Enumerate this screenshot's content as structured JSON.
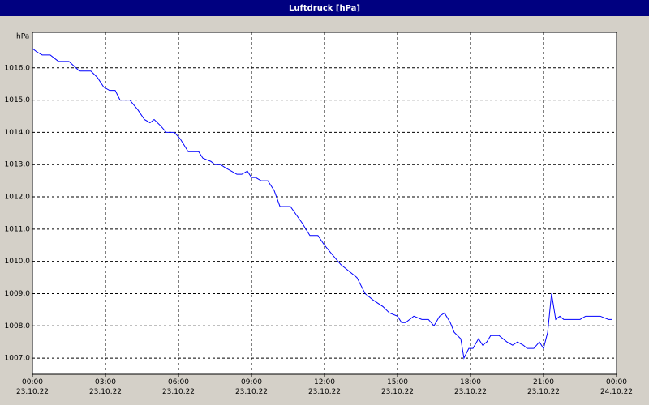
{
  "chart_data": {
    "type": "line",
    "title": "Luftdruck [hPa]",
    "y_label": "hPa",
    "x": [
      0,
      0.17,
      0.4,
      0.73,
      1.07,
      1.5,
      1.93,
      2.4,
      2.67,
      2.93,
      3.17,
      3.4,
      3.6,
      4,
      4.33,
      4.6,
      4.83,
      5,
      5.27,
      5.5,
      5.83,
      6.07,
      6.4,
      6.83,
      7,
      7.33,
      7.5,
      7.73,
      7.93,
      8.17,
      8.4,
      8.6,
      8.83,
      9,
      9.17,
      9.4,
      9.67,
      9.93,
      10.17,
      10.6,
      11.07,
      11.4,
      11.73,
      12,
      12.33,
      12.67,
      13,
      13.33,
      13.67,
      14,
      14.4,
      14.67,
      15,
      15.17,
      15.33,
      15.67,
      16,
      16.27,
      16.5,
      16.73,
      16.93,
      17.17,
      17.33,
      17.6,
      17.73,
      17.93,
      18.1,
      18.33,
      18.5,
      18.67,
      18.83,
      19.17,
      19.5,
      19.73,
      19.93,
      20.17,
      20.33,
      20.6,
      20.83,
      21,
      21.17,
      21.33,
      21.5,
      21.67,
      21.83,
      22.17,
      22.5,
      22.73,
      23.33,
      23.67,
      23.83
    ],
    "series": [
      {
        "name": "Luftdruck",
        "color": "#0000ff",
        "values": [
          1016.6,
          1016.5,
          1016.4,
          1016.4,
          1016.2,
          1016.2,
          1015.9,
          1015.9,
          1015.7,
          1015.4,
          1015.3,
          1015.3,
          1015.0,
          1015.0,
          1014.7,
          1014.4,
          1014.3,
          1014.4,
          1014.2,
          1014.0,
          1014.0,
          1013.8,
          1013.4,
          1013.4,
          1013.2,
          1013.1,
          1013.0,
          1013.0,
          1012.9,
          1012.8,
          1012.7,
          1012.7,
          1012.8,
          1012.6,
          1012.6,
          1012.5,
          1012.5,
          1012.2,
          1011.7,
          1011.7,
          1011.2,
          1010.8,
          1010.8,
          1010.5,
          1010.2,
          1009.9,
          1009.7,
          1009.5,
          1009.0,
          1008.8,
          1008.6,
          1008.4,
          1008.3,
          1008.1,
          1008.1,
          1008.3,
          1008.2,
          1008.2,
          1008.0,
          1008.3,
          1008.4,
          1008.1,
          1007.8,
          1007.6,
          1007.0,
          1007.3,
          1007.3,
          1007.6,
          1007.4,
          1007.5,
          1007.7,
          1007.7,
          1007.5,
          1007.4,
          1007.5,
          1007.4,
          1007.3,
          1007.3,
          1007.5,
          1007.3,
          1007.8,
          1009.0,
          1008.2,
          1008.3,
          1008.2,
          1008.2,
          1008.2,
          1008.3,
          1008.3,
          1008.2,
          1008.2
        ]
      }
    ],
    "xlim": [
      0,
      24
    ],
    "xticks": [
      {
        "value": 0,
        "label": "00:00\n23.10.22"
      },
      {
        "value": 3,
        "label": "03:00\n23.10.22"
      },
      {
        "value": 6,
        "label": "06:00\n23.10.22"
      },
      {
        "value": 9,
        "label": "09:00\n23.10.22"
      },
      {
        "value": 12,
        "label": "12:00\n23.10.22"
      },
      {
        "value": 15,
        "label": "15:00\n23.10.22"
      },
      {
        "value": 18,
        "label": "18:00\n23.10.22"
      },
      {
        "value": 21,
        "label": "21:00\n23.10.22"
      },
      {
        "value": 24,
        "label": "00:00\n24.10.22"
      }
    ],
    "ylim": [
      1006.5,
      1017.1
    ],
    "yticks": [
      {
        "value": 1007,
        "label": "1007,0"
      },
      {
        "value": 1008,
        "label": "1008,0"
      },
      {
        "value": 1009,
        "label": "1009,0"
      },
      {
        "value": 1010,
        "label": "1010,0"
      },
      {
        "value": 1011,
        "label": "1011,0"
      },
      {
        "value": 1012,
        "label": "1012,0"
      },
      {
        "value": 1013,
        "label": "1013,0"
      },
      {
        "value": 1014,
        "label": "1014,0"
      },
      {
        "value": 1015,
        "label": "1015,0"
      },
      {
        "value": 1016,
        "label": "1016,0"
      }
    ],
    "grid": true
  }
}
